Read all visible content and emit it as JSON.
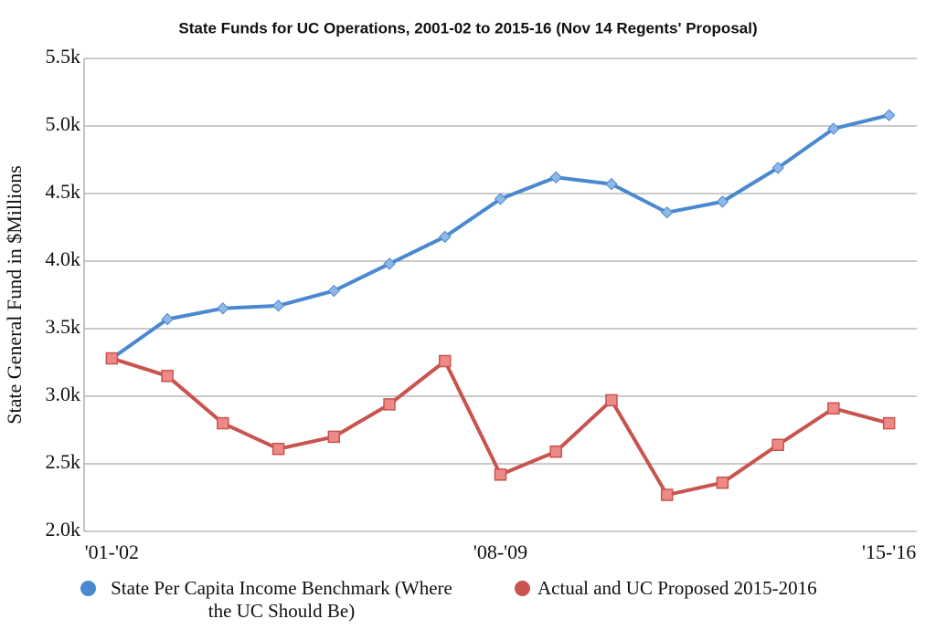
{
  "chart_data": {
    "type": "line",
    "title": "State Funds for UC Operations, 2001-02 to 2015-16 (Nov 14 Regents' Proposal)",
    "y_label": "State General Fund in $Millions",
    "categories": [
      "'01-'02",
      null,
      null,
      null,
      null,
      null,
      null,
      "'08-'09",
      null,
      null,
      null,
      null,
      null,
      null,
      "'15-'16"
    ],
    "series": [
      {
        "name": "State Per Capita Income Benchmark (Where the UC Should Be)",
        "color": "#4a89cf",
        "values": [
          3280,
          3570,
          3650,
          3670,
          3780,
          3980,
          4180,
          4460,
          4620,
          4570,
          4360,
          4440,
          4690,
          4980,
          5080
        ]
      },
      {
        "name": "Actual and UC Proposed 2015-2016",
        "color": "#c9534f",
        "values": [
          3280,
          3150,
          2800,
          2610,
          2700,
          2940,
          3260,
          2420,
          2590,
          2970,
          2270,
          2360,
          2640,
          2910,
          2800
        ]
      }
    ],
    "ylim": [
      2000,
      5500
    ],
    "yticks": [
      {
        "value": 2000,
        "label": "2.0k"
      },
      {
        "value": 2500,
        "label": "2.5k"
      },
      {
        "value": 3000,
        "label": "3.0k"
      },
      {
        "value": 3500,
        "label": "3.5k"
      },
      {
        "value": 4000,
        "label": "4.0k"
      },
      {
        "value": 4500,
        "label": "4.5k"
      },
      {
        "value": 5000,
        "label": "5.0k"
      },
      {
        "value": 5500,
        "label": "5.5k"
      }
    ],
    "grid": true
  }
}
